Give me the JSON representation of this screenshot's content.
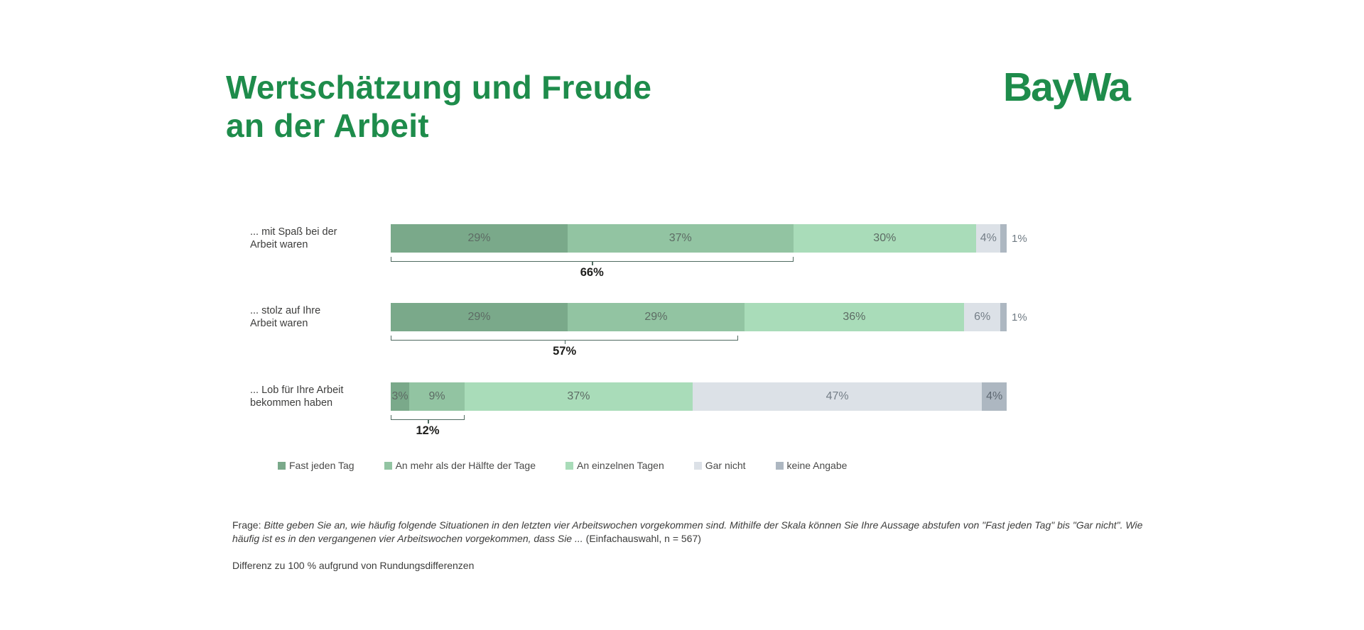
{
  "theme": {
    "brand_green": "#1e8c4b",
    "background": "#ffffff",
    "bracket_line": "#4f6a60"
  },
  "header": {
    "title_line1": "Wertschätzung und Freude",
    "title_line2": "an der Arbeit",
    "logo_text": "BayWa"
  },
  "chart_data": {
    "type": "bar",
    "orientation": "horizontal",
    "stacked": true,
    "unit": "%",
    "grid": false,
    "legend_position": "bottom",
    "categories": [
      "... mit Spaß bei der Arbeit waren",
      "... stolz auf Ihre Arbeit waren",
      "... Lob für Ihre Arbeit bekommen haben"
    ],
    "category_lines": [
      [
        "... mit Spaß bei der",
        "Arbeit waren"
      ],
      [
        "... stolz auf Ihre",
        "Arbeit waren"
      ],
      [
        "... Lob für Ihre Arbeit",
        "bekommen haben"
      ]
    ],
    "series": [
      {
        "name": "Fast jeden Tag",
        "color": "#7aa98a",
        "values": [
          29,
          29,
          3
        ]
      },
      {
        "name": "An mehr als der Hälfte der Tage",
        "color": "#92c4a2",
        "values": [
          37,
          29,
          9
        ]
      },
      {
        "name": "An einzelnen Tagen",
        "color": "#a9dcb9",
        "values": [
          30,
          36,
          37
        ]
      },
      {
        "name": "Gar nicht",
        "color": "#dce1e7",
        "values": [
          4,
          6,
          47
        ]
      },
      {
        "name": "keine Angabe",
        "color": "#adb7c1",
        "values": [
          1,
          1,
          4
        ]
      }
    ],
    "bracket_totals": {
      "values": [
        66,
        57,
        12
      ],
      "labels": [
        "66%",
        "57%",
        "12%"
      ]
    }
  },
  "footer": {
    "question_prefix": "Frage:",
    "question_italic": "Bitte geben Sie an, wie häufig folgende Situationen in den letzten vier Arbeitswochen vorgekommen sind. Mithilfe der Skala können Sie Ihre Aussage abstufen von \"Fast jeden Tag\" bis \"Gar nicht\". Wie häufig ist es in den vergangenen vier Arbeitswochen vorgekommen, dass Sie ...",
    "question_suffix": "(Einfachauswahl, n = 567)",
    "rounding_note": "Differenz zu 100 % aufgrund von Rundungsdifferenzen"
  }
}
